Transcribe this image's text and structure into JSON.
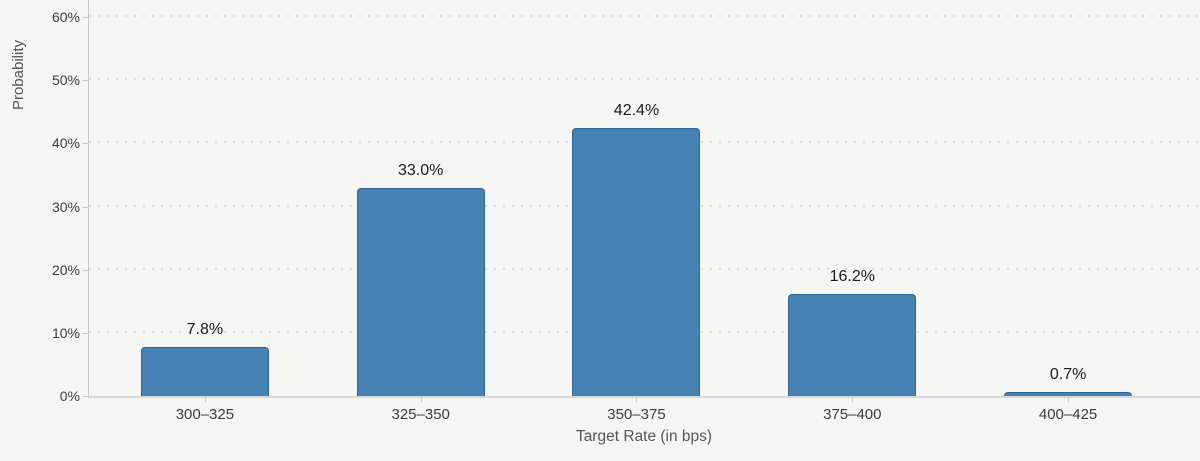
{
  "chart_data": {
    "type": "bar",
    "title": "",
    "xlabel": "Target Rate (in bps)",
    "ylabel": "Probability",
    "categories": [
      "300–325",
      "325–350",
      "350–375",
      "375–400",
      "400–425"
    ],
    "values": [
      7.8,
      33.0,
      42.4,
      16.2,
      0.7
    ],
    "value_labels": [
      "7.8%",
      "33.0%",
      "42.4%",
      "16.2%",
      "0.7%"
    ],
    "y_ticks": [
      {
        "value": 0,
        "label": "0%"
      },
      {
        "value": 10,
        "label": "10%"
      },
      {
        "value": 20,
        "label": "20%"
      },
      {
        "value": 30,
        "label": "30%"
      },
      {
        "value": 40,
        "label": "40%"
      },
      {
        "value": 50,
        "label": "50%"
      },
      {
        "value": 60,
        "label": "60%"
      }
    ],
    "ylim": [
      0,
      62.7
    ],
    "grid": "dotted-horizontal",
    "legend": "none",
    "colors": {
      "bar_fill": "#4681b4",
      "bar_border": "#2f6496",
      "background": "#f5f5f4",
      "gridline": "#dcdcda",
      "axis_line": "#c9c9c7",
      "tick_text": "#3d3d40",
      "axis_title_text": "#55565a",
      "value_label_text": "#1a1a1c"
    }
  }
}
